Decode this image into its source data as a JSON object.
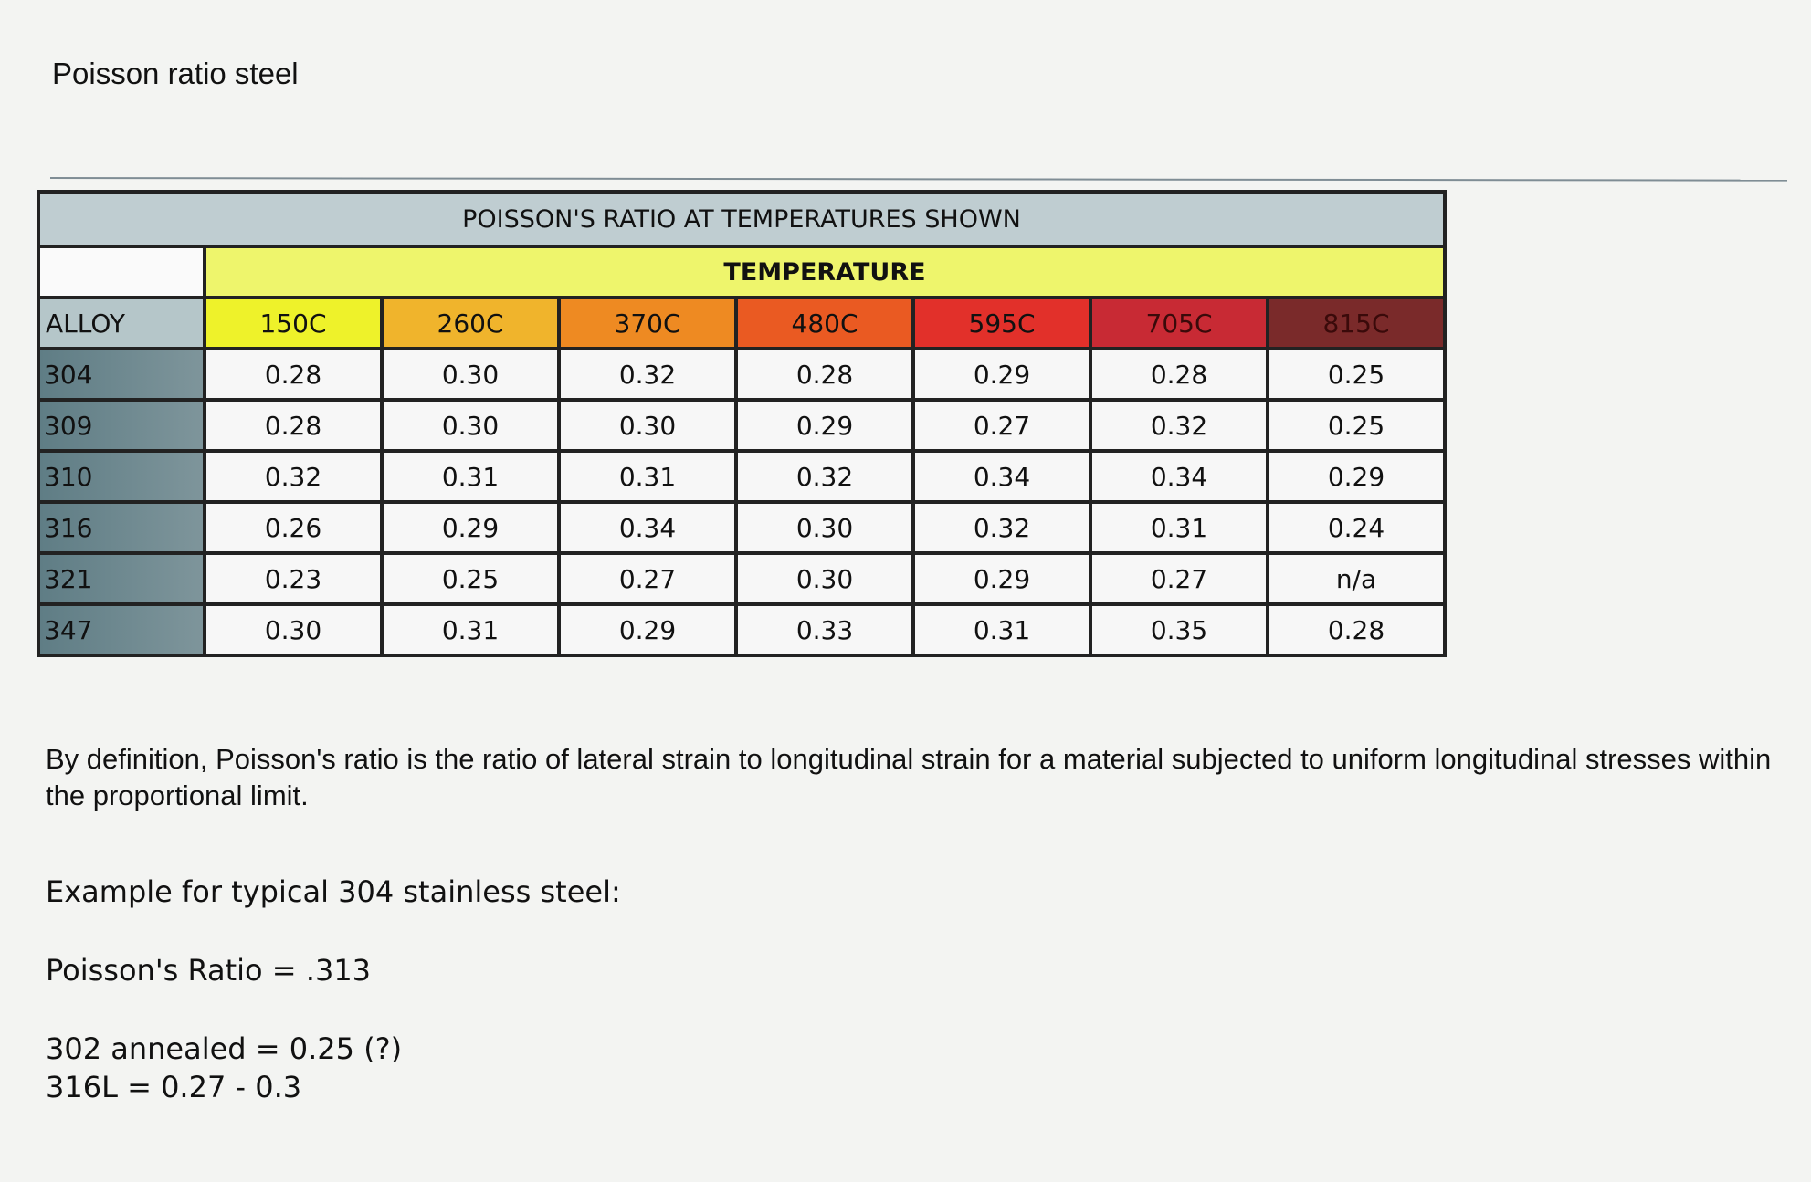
{
  "title": "Poisson ratio steel",
  "table": {
    "caption": "POISSON'S RATIO AT TEMPERATURES SHOWN",
    "group_header": "TEMPERATURE",
    "alloy_header": "ALLOY",
    "columns": [
      {
        "label": "150C",
        "color": "#eef22a"
      },
      {
        "label": "260C",
        "color": "#f0b42c"
      },
      {
        "label": "370C",
        "color": "#ee8a22"
      },
      {
        "label": "480C",
        "color": "#ea5a22"
      },
      {
        "label": "595C",
        "color": "#e2302a"
      },
      {
        "label": "705C",
        "color": "#c82a34"
      },
      {
        "label": "815C",
        "color": "#7a2a2a"
      }
    ],
    "rows": [
      {
        "alloy": "304",
        "values": [
          "0.28",
          "0.30",
          "0.32",
          "0.28",
          "0.29",
          "0.28",
          "0.25"
        ]
      },
      {
        "alloy": "309",
        "values": [
          "0.28",
          "0.30",
          "0.30",
          "0.29",
          "0.27",
          "0.32",
          "0.25"
        ]
      },
      {
        "alloy": "310",
        "values": [
          "0.32",
          "0.31",
          "0.31",
          "0.32",
          "0.34",
          "0.34",
          "0.29"
        ]
      },
      {
        "alloy": "316",
        "values": [
          "0.26",
          "0.29",
          "0.34",
          "0.30",
          "0.32",
          "0.31",
          "0.24"
        ]
      },
      {
        "alloy": "321",
        "values": [
          "0.23",
          "0.25",
          "0.27",
          "0.30",
          "0.29",
          "0.27",
          "n/a"
        ]
      },
      {
        "alloy": "347",
        "values": [
          "0.30",
          "0.31",
          "0.29",
          "0.33",
          "0.31",
          "0.35",
          "0.28"
        ]
      }
    ]
  },
  "definition": "By definition, Poisson's ratio is the ratio of lateral strain to longitudinal strain for a material subjected to uniform longitudinal stresses within the proportional limit.",
  "example_heading": "Example for typical 304 stainless steel:",
  "example_value": "Poisson's Ratio = .313",
  "note_302": "302 annealed = 0.25 (?)",
  "note_316l": "316L = 0.27 - 0.3"
}
